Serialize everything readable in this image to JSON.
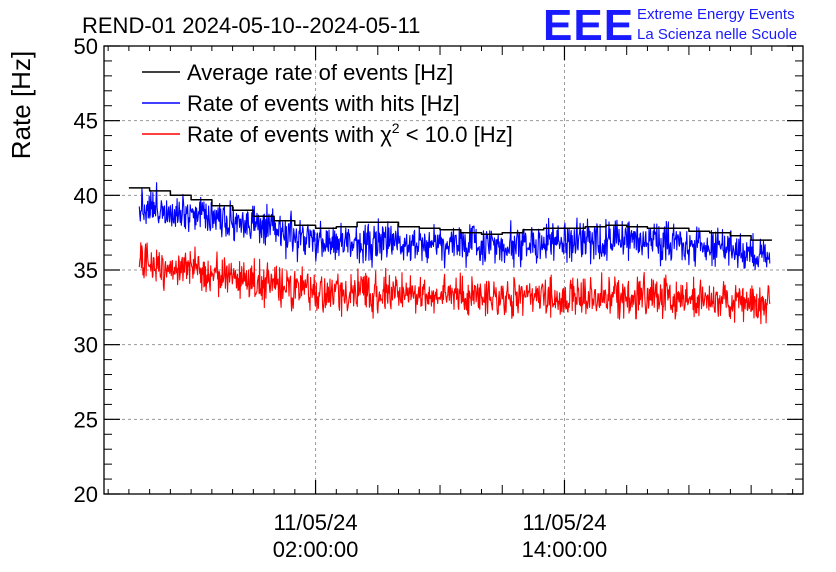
{
  "chart_data": {
    "type": "line",
    "title": "REND-01 2024-05-10--2024-05-11",
    "ylabel": "Rate [Hz]",
    "xlabel": "",
    "ylim": [
      20,
      50
    ],
    "y_ticks": [
      20,
      25,
      30,
      35,
      40,
      45,
      50
    ],
    "x_range_hours": [
      -8.2,
      25.5
    ],
    "x_ticks": [
      {
        "hour": 2,
        "date": "11/05/24",
        "time": "02:00:00"
      },
      {
        "hour": 14,
        "date": "11/05/24",
        "time": "14:00:00"
      }
    ],
    "grid": true,
    "legend_position": "top-left",
    "series": [
      {
        "name": "Average rate of events [Hz]",
        "color": "#000000",
        "style": "step",
        "x_hours": [
          -6.5,
          -5.5,
          -4.5,
          -3.5,
          -2.5,
          -1.5,
          -0.5,
          0.5,
          1.5,
          2.5,
          3.5,
          4.5,
          5.5,
          6.5,
          7.5,
          8.5,
          9.5,
          10.5,
          11.5,
          12.5,
          13.5,
          14.5,
          15.5,
          16.5,
          17.5,
          18.5,
          19.5,
          20.5,
          21.5,
          22.5,
          23.5
        ],
        "values": [
          40.5,
          40.3,
          40.0,
          39.7,
          39.3,
          39.0,
          38.6,
          38.3,
          38.0,
          37.8,
          37.9,
          38.2,
          38.2,
          37.9,
          37.8,
          37.7,
          37.5,
          37.4,
          37.5,
          37.7,
          37.8,
          37.8,
          37.9,
          38.0,
          37.9,
          37.8,
          37.8,
          37.6,
          37.5,
          37.3,
          37.0
        ]
      },
      {
        "name": "Rate of events with hits [Hz]",
        "color": "#0000ff",
        "style": "noisy",
        "x_start_hour": -6.5,
        "x_end_hour": 23.9,
        "noise_amplitude": 1.3,
        "trend_hours": [
          -6.5,
          -3,
          0,
          2,
          6,
          10,
          14,
          18,
          22,
          23.9
        ],
        "trend_values": [
          39.3,
          38.7,
          37.6,
          36.8,
          36.9,
          36.7,
          36.8,
          37.1,
          36.4,
          35.8
        ]
      },
      {
        "name": "Rate of events with χ² < 10.0 [Hz]",
        "color": "#ff0000",
        "style": "noisy",
        "x_start_hour": -6.5,
        "x_end_hour": 23.9,
        "noise_amplitude": 1.3,
        "trend_hours": [
          -6.5,
          -3,
          0,
          2,
          6,
          10,
          14,
          18,
          22,
          23.9
        ],
        "trend_values": [
          35.5,
          34.8,
          34.0,
          33.4,
          33.5,
          33.2,
          33.1,
          33.3,
          32.9,
          32.6
        ]
      }
    ]
  },
  "logo": {
    "mark": "EEE",
    "line1": "Extreme Energy Events",
    "line2": "La Scienza nelle Scuole",
    "color": "#1a1aff"
  },
  "legend": {
    "avg_label": "Average rate of events [Hz]",
    "hits_label": "Rate of events with hits [Hz]",
    "chi_prefix": "Rate of events with ",
    "chi_symbol": "χ",
    "chi_exp": "2",
    "chi_suffix": " < 10.0 [Hz]"
  }
}
